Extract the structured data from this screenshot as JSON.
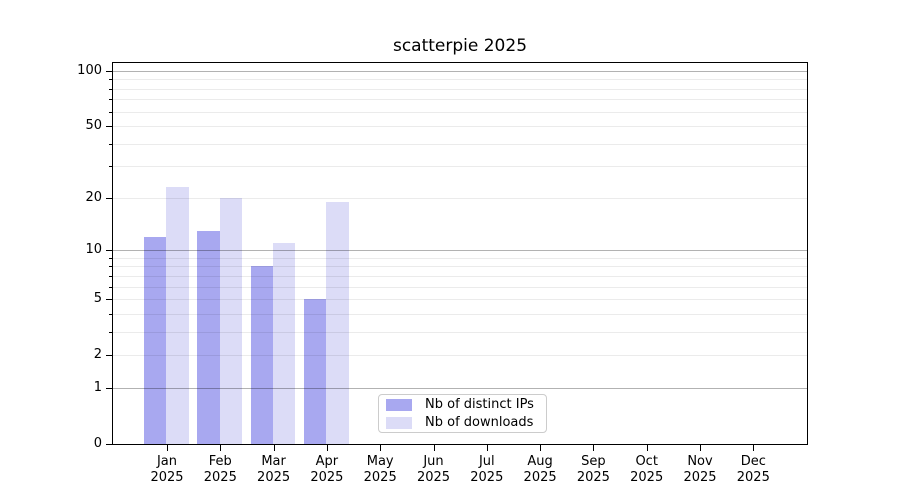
{
  "chart_data": {
    "type": "bar",
    "title": "scatterpie 2025",
    "x_year": "2025",
    "months": [
      "Jan",
      "Feb",
      "Mar",
      "Apr",
      "May",
      "Jun",
      "Jul",
      "Aug",
      "Sep",
      "Oct",
      "Nov",
      "Dec"
    ],
    "series": [
      {
        "name": "Nb of distinct IPs",
        "color": "#a8a8f0",
        "values": [
          12,
          13,
          8,
          5,
          null,
          null,
          null,
          null,
          null,
          null,
          null,
          null
        ]
      },
      {
        "name": "Nb of downloads",
        "color": "#dcdcf7",
        "values": [
          23,
          20,
          11,
          19,
          null,
          null,
          null,
          null,
          null,
          null,
          null,
          null
        ]
      }
    ],
    "yscale": "log1p",
    "ylim": [
      0,
      112
    ],
    "yticks": [
      {
        "v": 0,
        "label": "0"
      },
      {
        "v": 1,
        "label": "1"
      },
      {
        "v": 2,
        "label": "2"
      },
      {
        "v": 5,
        "label": "5"
      },
      {
        "v": 10,
        "label": "10"
      },
      {
        "v": 20,
        "label": "20"
      },
      {
        "v": 50,
        "label": "50"
      },
      {
        "v": 100,
        "label": "100"
      }
    ],
    "major_gridlines": [
      1,
      10,
      100
    ],
    "minor_gridlines": [
      2,
      3,
      4,
      5,
      6,
      7,
      8,
      9,
      20,
      30,
      40,
      50,
      60,
      70,
      80,
      90
    ],
    "grid": true,
    "legend_entries": [
      "Nb of distinct IPs",
      "Nb of downloads"
    ],
    "colors": {
      "bar_distinct_ips": "#a8a8f0",
      "bar_downloads": "#dcdcf7",
      "major_grid": "rgba(0,0,0,0.30)",
      "minor_grid": "rgba(0,0,0,0.08)",
      "spine": "#000000",
      "background": "#ffffff"
    }
  }
}
